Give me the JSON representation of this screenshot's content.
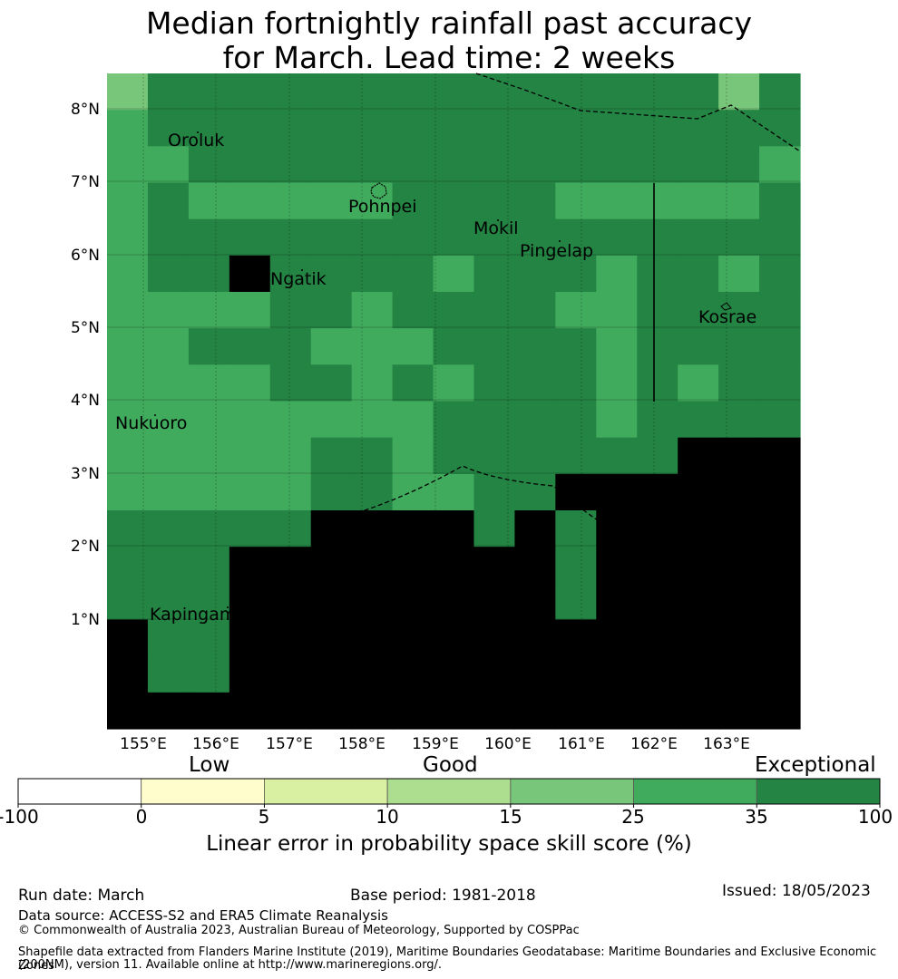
{
  "title": {
    "line1": "Median fortnightly rainfall past accuracy",
    "line2": "for March. Lead time: 2 weeks"
  },
  "map": {
    "lon_ticks": [
      "155°E",
      "156°E",
      "157°E",
      "158°E",
      "159°E",
      "160°E",
      "161°E",
      "162°E",
      "163°E"
    ],
    "lat_ticks": [
      "8°N",
      "7°N",
      "6°N",
      "5°N",
      "4°N",
      "3°N",
      "2°N",
      "1°N"
    ],
    "places": [
      {
        "name": "Oroluk"
      },
      {
        "name": "Pohnpei"
      },
      {
        "name": "Mokil"
      },
      {
        "name": "Pingelap"
      },
      {
        "name": "Ngatik"
      },
      {
        "name": "Kosrae"
      },
      {
        "name": "Nukuoro"
      },
      {
        "name": "Kapingamarangi"
      }
    ],
    "palette": [
      "#ffffff",
      "#fffdcc",
      "#d9f0a3",
      "#addd8e",
      "#78c679",
      "#41ab5d",
      "#238443"
    ],
    "grid_classes": [
      "46666666666666646",
      "56666666666666666",
      "55666666666666665",
      "56555556666555556",
      "56666666666666666",
      "56676666566656656",
      "55556656666556666",
      "55666555666656666",
      "55556656566656566",
      "55555555666656666",
      "55555665666666777",
      "55555665566777777",
      "66666777767677777",
      "66677777777677777",
      "66677777777677777",
      "76677777777777777",
      "76677777777777777",
      "77777777777777777"
    ]
  },
  "colorbar": {
    "heading_low": "Low",
    "heading_good": "Good",
    "heading_exceptional": "Exceptional",
    "bounds": [
      -100,
      0,
      5,
      10,
      15,
      25,
      35,
      100
    ],
    "tick_labels": [
      "-100",
      "0",
      "5",
      "10",
      "15",
      "25",
      "35",
      "100"
    ],
    "label": "Linear error in probability space skill score (%)"
  },
  "footer": {
    "run_date": "Run date: March",
    "base_period": "Base period: 1981-2018",
    "issued": "Issued: 18/05/2023",
    "data_source": "Data source: ACCESS-S2 and ERA5 Climate Reanalysis",
    "copyright": "© Commonwealth of Australia 2023, Australian Bureau of Meteorology, Supported by COSPPac",
    "shapefile_line1": "Shapefile data extracted from Flanders Marine Institute (2019), Maritime Boundaries Geodatabase: Maritime Boundaries and Exclusive Economic Zones",
    "shapefile_line2": "(200NM), version 11. Available online at http://www.marineregions.org/."
  }
}
